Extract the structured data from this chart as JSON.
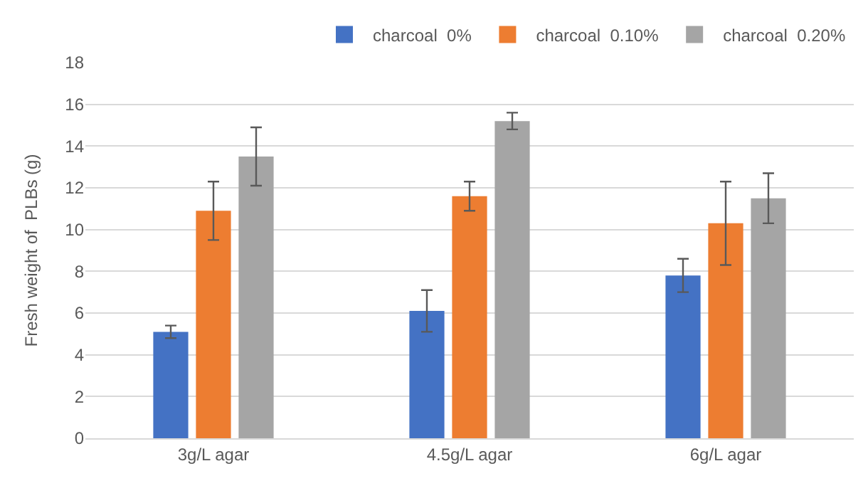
{
  "chart_data": {
    "type": "bar",
    "ylabel": "Fresh weight of  PLBs (g)",
    "categories": [
      "3g/L agar",
      "4.5g/L agar",
      "6g/L agar"
    ],
    "series": [
      {
        "name": "charcoal  0%",
        "color": "#4472c4",
        "values": [
          5.1,
          6.1,
          7.8
        ],
        "errors": [
          0.3,
          1.0,
          0.8
        ]
      },
      {
        "name": "charcoal  0.10%",
        "color": "#ed7d31",
        "values": [
          10.9,
          11.6,
          10.3
        ],
        "errors": [
          1.4,
          0.7,
          2.0
        ]
      },
      {
        "name": "charcoal  0.20%",
        "color": "#a5a5a5",
        "values": [
          13.5,
          15.2,
          11.5
        ],
        "errors": [
          1.4,
          0.4,
          1.2
        ]
      }
    ],
    "ylim": [
      0,
      18
    ],
    "yticks": [
      0,
      2,
      4,
      6,
      8,
      10,
      12,
      14,
      16,
      18
    ],
    "grid": "y",
    "legend": "top right"
  }
}
